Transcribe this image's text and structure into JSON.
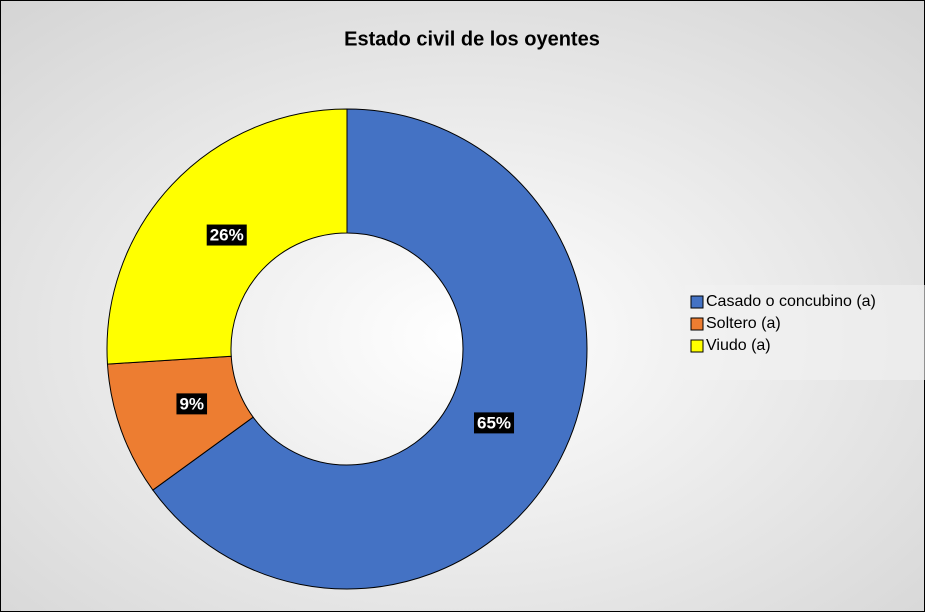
{
  "chart_data": {
    "type": "donut",
    "title": "Estado civil de los oyentes",
    "categories": [
      "Casado o concubino (a)",
      "Soltero (a)",
      "Viudo (a)"
    ],
    "values": [
      65,
      9,
      26
    ],
    "value_labels": [
      "65%",
      "9%",
      "26%"
    ],
    "colors": [
      "#4472c4",
      "#ed7d31",
      "#ffff00"
    ],
    "legend": "right"
  }
}
